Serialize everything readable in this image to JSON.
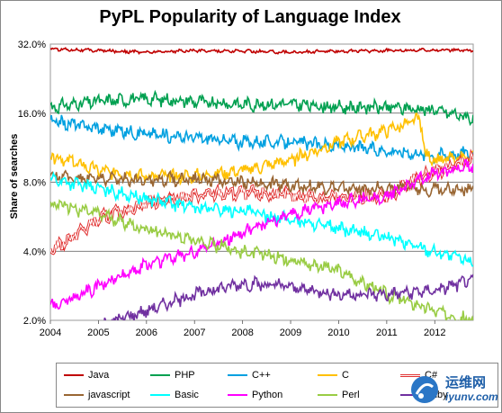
{
  "chart_data": {
    "type": "line",
    "title": "PyPL Popularity of Language Index",
    "ylabel": "Share of searches",
    "xlabel": "",
    "y_scale": "log2",
    "ylim": [
      2.0,
      32.0
    ],
    "xlim": [
      2004,
      2012.8
    ],
    "y_ticks": [
      "32.0%",
      "16.0%",
      "8.0%",
      "4.0%",
      "2.0%"
    ],
    "y_tick_values": [
      32,
      16,
      8,
      4,
      2
    ],
    "x_ticks": [
      "2004",
      "2005",
      "2006",
      "2007",
      "2008",
      "2009",
      "2010",
      "2011",
      "2012"
    ],
    "x_tick_values": [
      2004,
      2005,
      2006,
      2007,
      2008,
      2009,
      2010,
      2011,
      2012
    ],
    "grid": "horizontal",
    "legend_position": "bottom",
    "series": [
      {
        "name": "Java",
        "color": "#c00000",
        "style": "solid",
        "points": [
          [
            2004,
            30.5
          ],
          [
            2005,
            30.0
          ],
          [
            2006,
            29.5
          ],
          [
            2007,
            30.0
          ],
          [
            2008,
            29.8
          ],
          [
            2009,
            29.5
          ],
          [
            2010,
            29.8
          ],
          [
            2011,
            30.0
          ],
          [
            2012,
            30.2
          ],
          [
            2012.8,
            30.0
          ]
        ]
      },
      {
        "name": "PHP",
        "color": "#00a050",
        "style": "solid",
        "points": [
          [
            2004,
            17.0
          ],
          [
            2005,
            18.0
          ],
          [
            2006,
            18.5
          ],
          [
            2007,
            18.0
          ],
          [
            2008,
            17.5
          ],
          [
            2009,
            17.5
          ],
          [
            2010,
            17.0
          ],
          [
            2011,
            17.0
          ],
          [
            2012,
            16.5
          ],
          [
            2012.8,
            15.2
          ]
        ]
      },
      {
        "name": "C++",
        "color": "#00a0e0",
        "style": "solid",
        "points": [
          [
            2004,
            14.8
          ],
          [
            2005,
            13.8
          ],
          [
            2006,
            13.0
          ],
          [
            2007,
            12.5
          ],
          [
            2008,
            12.0
          ],
          [
            2009,
            12.0
          ],
          [
            2010,
            11.5
          ],
          [
            2011,
            11.0
          ],
          [
            2012,
            10.5
          ],
          [
            2012.8,
            10.8
          ]
        ]
      },
      {
        "name": "C",
        "color": "#ffc000",
        "style": "solid",
        "points": [
          [
            2004,
            10.5
          ],
          [
            2005,
            9.0
          ],
          [
            2006,
            8.5
          ],
          [
            2007,
            8.5
          ],
          [
            2008,
            9.0
          ],
          [
            2009,
            10.0
          ],
          [
            2010,
            12.0
          ],
          [
            2011,
            13.5
          ],
          [
            2011.7,
            15.0
          ],
          [
            2011.8,
            10.5
          ],
          [
            2012,
            10.0
          ],
          [
            2012.8,
            10.2
          ]
        ]
      },
      {
        "name": "C#",
        "color": "#e03030",
        "style": "double",
        "points": [
          [
            2004,
            4.0
          ],
          [
            2005,
            5.5
          ],
          [
            2006,
            6.5
          ],
          [
            2007,
            7.0
          ],
          [
            2008,
            7.2
          ],
          [
            2009,
            7.0
          ],
          [
            2010,
            6.8
          ],
          [
            2011,
            7.0
          ],
          [
            2012,
            9.0
          ],
          [
            2012.8,
            10.0
          ]
        ]
      },
      {
        "name": "javascript",
        "color": "#996633",
        "style": "solid",
        "points": [
          [
            2004,
            8.5
          ],
          [
            2005,
            8.3
          ],
          [
            2006,
            8.2
          ],
          [
            2007,
            8.3
          ],
          [
            2008,
            8.0
          ],
          [
            2009,
            7.8
          ],
          [
            2010,
            7.5
          ],
          [
            2011,
            7.5
          ],
          [
            2012,
            7.5
          ],
          [
            2012.8,
            7.5
          ]
        ]
      },
      {
        "name": "Basic",
        "color": "#00ffff",
        "style": "solid",
        "points": [
          [
            2004,
            8.3
          ],
          [
            2005,
            7.5
          ],
          [
            2006,
            6.8
          ],
          [
            2007,
            6.2
          ],
          [
            2008,
            6.0
          ],
          [
            2009,
            5.5
          ],
          [
            2010,
            5.0
          ],
          [
            2011,
            4.6
          ],
          [
            2012,
            4.0
          ],
          [
            2012.8,
            3.6
          ]
        ]
      },
      {
        "name": "Python",
        "color": "#ff00ff",
        "style": "solid",
        "points": [
          [
            2004,
            2.3
          ],
          [
            2005,
            2.8
          ],
          [
            2006,
            3.5
          ],
          [
            2007,
            4.0
          ],
          [
            2008,
            4.8
          ],
          [
            2009,
            5.8
          ],
          [
            2010,
            6.5
          ],
          [
            2011,
            7.0
          ],
          [
            2012,
            8.8
          ],
          [
            2012.8,
            9.5
          ]
        ]
      },
      {
        "name": "Perl",
        "color": "#99cc44",
        "style": "solid",
        "points": [
          [
            2004,
            6.5
          ],
          [
            2005,
            5.8
          ],
          [
            2006,
            5.0
          ],
          [
            2007,
            4.5
          ],
          [
            2008,
            4.0
          ],
          [
            2009,
            3.7
          ],
          [
            2010,
            3.3
          ],
          [
            2011,
            2.6
          ],
          [
            2012,
            2.2
          ],
          [
            2012.8,
            2.0
          ]
        ]
      },
      {
        "name": "Ruby",
        "color": "#7030a0",
        "style": "solid",
        "points": [
          [
            2004,
            1.8
          ],
          [
            2005,
            1.9
          ],
          [
            2006,
            2.2
          ],
          [
            2007,
            2.6
          ],
          [
            2008,
            2.9
          ],
          [
            2009,
            2.8
          ],
          [
            2010,
            2.6
          ],
          [
            2011,
            2.6
          ],
          [
            2012,
            2.7
          ],
          [
            2012.8,
            3.0
          ]
        ]
      }
    ]
  },
  "watermark": {
    "cn": "运维网",
    "url": "iyunv.com"
  }
}
